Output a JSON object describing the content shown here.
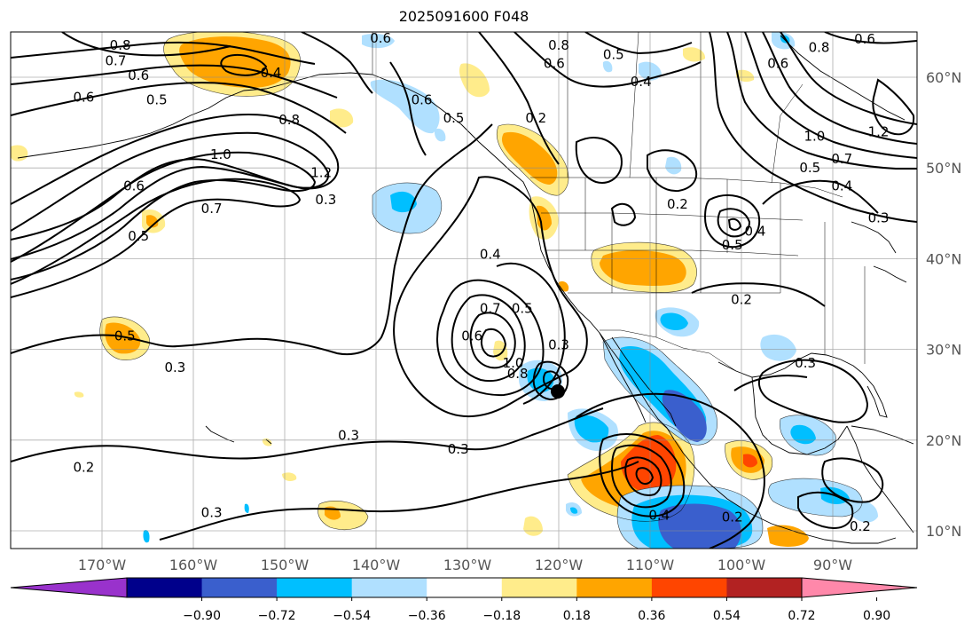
{
  "title": "2025091600 F048",
  "map": {
    "lat_labels": [
      {
        "lat": 60,
        "text": "60°N"
      },
      {
        "lat": 50,
        "text": "50°N"
      },
      {
        "lat": 40,
        "text": "40°N"
      },
      {
        "lat": 30,
        "text": "30°N"
      },
      {
        "lat": 20,
        "text": "20°N"
      },
      {
        "lat": 10,
        "text": "10°N"
      }
    ],
    "lon_labels": [
      {
        "lon": -170,
        "text": "170°W"
      },
      {
        "lon": -160,
        "text": "160°W"
      },
      {
        "lon": -150,
        "text": "150°W"
      },
      {
        "lon": -140,
        "text": "140°W"
      },
      {
        "lon": -130,
        "text": "130°W"
      },
      {
        "lon": -120,
        "text": "120°W"
      },
      {
        "lon": -110,
        "text": "110°W"
      },
      {
        "lon": -100,
        "text": "100°W"
      },
      {
        "lon": -90,
        "text": "90°W"
      }
    ],
    "contour_labels": [
      {
        "lon": -168,
        "lat": 63.5,
        "text": "0.8"
      },
      {
        "lon": -168.5,
        "lat": 61.8,
        "text": "0.7"
      },
      {
        "lon": -166,
        "lat": 60.2,
        "text": "0.6"
      },
      {
        "lon": -172,
        "lat": 57.8,
        "text": "0.6"
      },
      {
        "lon": -164,
        "lat": 57.5,
        "text": "0.5"
      },
      {
        "lon": -151.5,
        "lat": 60.5,
        "text": "0.4"
      },
      {
        "lon": -139.5,
        "lat": 64.3,
        "text": "0.6"
      },
      {
        "lon": -149.5,
        "lat": 55.3,
        "text": "0.8"
      },
      {
        "lon": -135,
        "lat": 57.5,
        "text": "0.6"
      },
      {
        "lon": -131.5,
        "lat": 55.5,
        "text": "0.5"
      },
      {
        "lon": -122.5,
        "lat": 55.5,
        "text": "0.2"
      },
      {
        "lon": -120,
        "lat": 63.5,
        "text": "0.8"
      },
      {
        "lon": -120.5,
        "lat": 61.5,
        "text": "0.6"
      },
      {
        "lon": -114,
        "lat": 62.5,
        "text": "0.5"
      },
      {
        "lon": -111,
        "lat": 59.5,
        "text": "0.4"
      },
      {
        "lon": -96,
        "lat": 61.5,
        "text": "0.6"
      },
      {
        "lon": -91.5,
        "lat": 63.3,
        "text": "0.8"
      },
      {
        "lon": -86.5,
        "lat": 64.2,
        "text": "0.6"
      },
      {
        "lon": -92,
        "lat": 53.5,
        "text": "1.0"
      },
      {
        "lon": -89,
        "lat": 51,
        "text": "0.7"
      },
      {
        "lon": -92.5,
        "lat": 50,
        "text": "0.5"
      },
      {
        "lon": -89,
        "lat": 48,
        "text": "0.4"
      },
      {
        "lon": -85,
        "lat": 54,
        "text": "1.2"
      },
      {
        "lon": -85,
        "lat": 44.5,
        "text": "0.3"
      },
      {
        "lon": -157,
        "lat": 51.5,
        "text": "1.0"
      },
      {
        "lon": -146,
        "lat": 49.5,
        "text": "1.2"
      },
      {
        "lon": -166.5,
        "lat": 48,
        "text": "0.6"
      },
      {
        "lon": -158,
        "lat": 45.5,
        "text": "0.7"
      },
      {
        "lon": -145.5,
        "lat": 46.5,
        "text": "0.3"
      },
      {
        "lon": -166,
        "lat": 42.5,
        "text": "0.5"
      },
      {
        "lon": -167.5,
        "lat": 31.5,
        "text": "0.5"
      },
      {
        "lon": -162,
        "lat": 28,
        "text": "0.3"
      },
      {
        "lon": -143,
        "lat": 20.5,
        "text": "0.3"
      },
      {
        "lon": -172,
        "lat": 17,
        "text": "0.2"
      },
      {
        "lon": -158,
        "lat": 12,
        "text": "0.3"
      },
      {
        "lon": -127.5,
        "lat": 40.5,
        "text": "0.4"
      },
      {
        "lon": -124,
        "lat": 34.5,
        "text": "0.5"
      },
      {
        "lon": -127.5,
        "lat": 34.5,
        "text": "0.7"
      },
      {
        "lon": -129.5,
        "lat": 31.5,
        "text": "0.6"
      },
      {
        "lon": -125,
        "lat": 28.5,
        "text": "1.0"
      },
      {
        "lon": -124.5,
        "lat": 27.3,
        "text": "0.8"
      },
      {
        "lon": -131,
        "lat": 19,
        "text": "0.3"
      },
      {
        "lon": -120,
        "lat": 30.5,
        "text": "0.3"
      },
      {
        "lon": -107,
        "lat": 46,
        "text": "0.2"
      },
      {
        "lon": -101,
        "lat": 41.5,
        "text": "0.5"
      },
      {
        "lon": -98.5,
        "lat": 43,
        "text": "0.4"
      },
      {
        "lon": -100,
        "lat": 35.5,
        "text": "0.2"
      },
      {
        "lon": -93,
        "lat": 28.5,
        "text": "0.3"
      },
      {
        "lon": -109,
        "lat": 11.7,
        "text": "0.4"
      },
      {
        "lon": -101,
        "lat": 11.5,
        "text": "0.2"
      },
      {
        "lon": -87,
        "lat": 10.5,
        "text": "0.2"
      }
    ],
    "colors": {
      "contour": "#000000",
      "grid": "#8c8c8c",
      "coast": "#000000",
      "bins": [
        "#9932cc",
        "#00008b",
        "#3a5fcd",
        "#00bfff",
        "#b0e0ff",
        "#ffffff",
        "#ffec8b",
        "#ffa500",
        "#ff4500",
        "#b22222",
        "#ff88aa"
      ]
    }
  },
  "colorbar": {
    "tick_labels": [
      "−0.90",
      "−0.72",
      "−0.54",
      "−0.36",
      "−0.18",
      "0.18",
      "0.36",
      "0.54",
      "0.72",
      "0.90"
    ]
  }
}
